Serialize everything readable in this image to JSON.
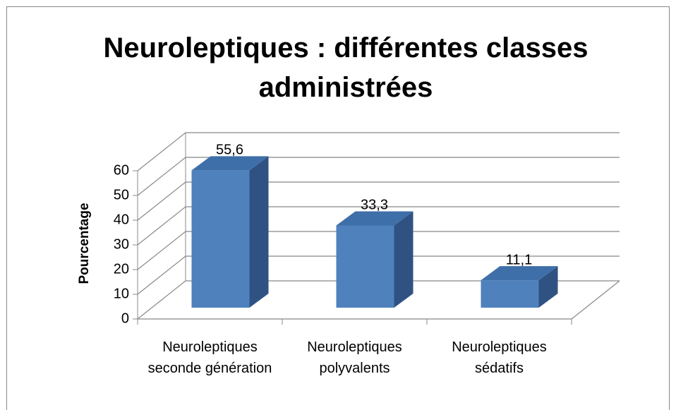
{
  "chart_data": {
    "type": "bar3d",
    "title": "Neuroleptiques : différentes classes administrées",
    "y_label": "Pourcentage",
    "categories": [
      "Neuroleptiques seconde génération",
      "Neuroleptiques polyvalents",
      "Neuroleptiques sédatifs"
    ],
    "values": [
      55.6,
      33.3,
      11.1
    ],
    "value_labels": [
      "55,6",
      "33,3",
      "11,1"
    ],
    "color": "#4f81bd",
    "ylim": [
      0,
      60
    ],
    "yticks": [
      0,
      10,
      20,
      30,
      40,
      50,
      60
    ],
    "grid": true
  }
}
